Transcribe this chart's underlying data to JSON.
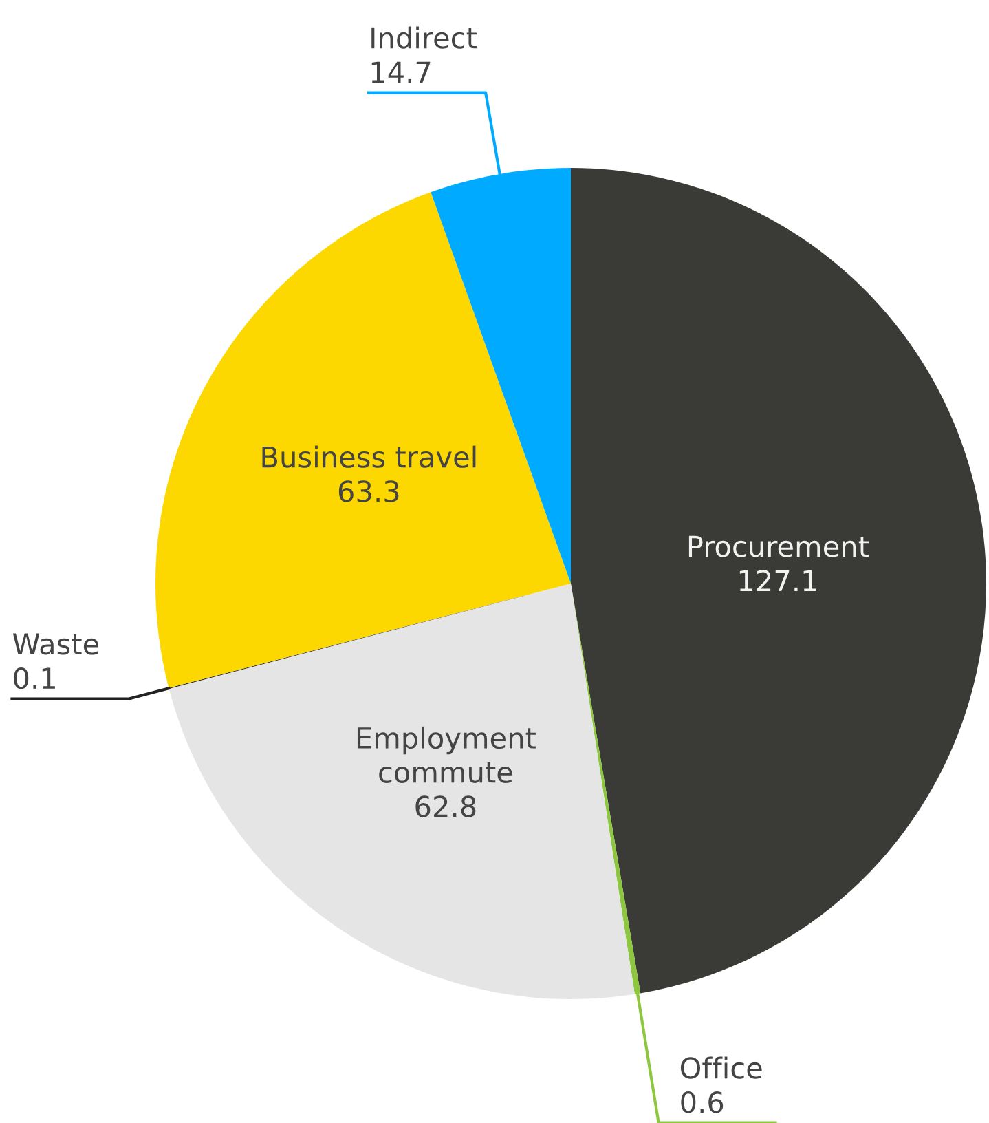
{
  "chart_data": {
    "type": "pie",
    "categories": [
      "Procurement",
      "Office",
      "Employment commute",
      "Waste",
      "Business travel",
      "Indirect"
    ],
    "values": [
      127.1,
      0.6,
      62.8,
      0.1,
      63.3,
      14.7
    ],
    "colors": [
      "#3a3b36",
      "#8dc63f",
      "#e5e5e5",
      "#222222",
      "#fdd700",
      "#00aaff"
    ],
    "data_labels": true
  }
}
